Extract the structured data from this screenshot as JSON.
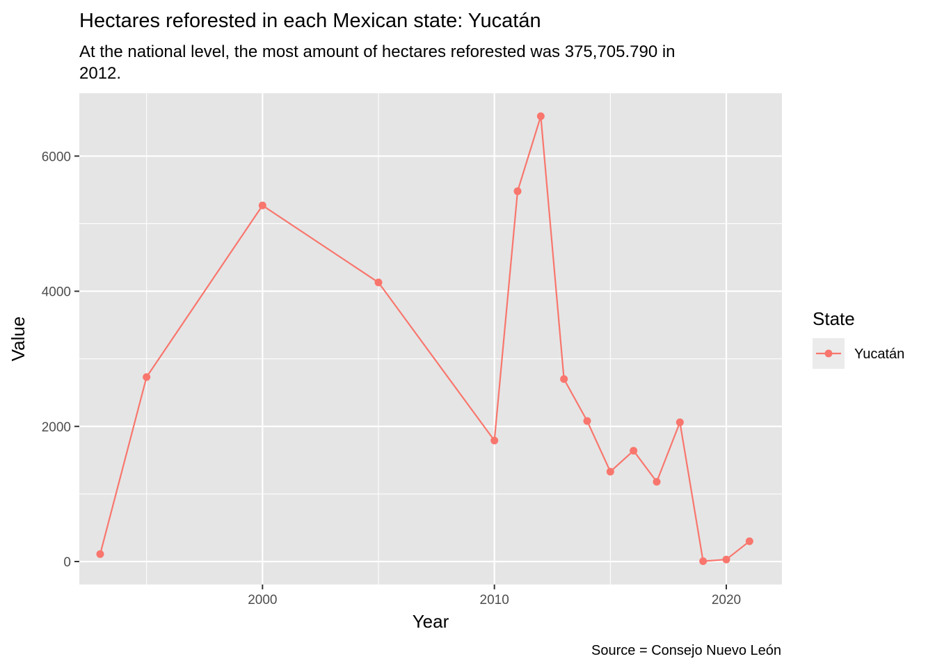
{
  "chart_data": {
    "type": "line",
    "title": "Hectares reforested in each Mexican state: Yucatán",
    "subtitle": [
      "At the national level, the most amount of hectares reforested was 375,705.790 in",
      "2012."
    ],
    "xlabel": "Year",
    "ylabel": "Value",
    "caption": "Source = Consejo Nuevo León",
    "xlim": [
      1992.1,
      2022.4
    ],
    "ylim": [
      -340,
      6930
    ],
    "x_ticks": [
      2000,
      2010,
      2020
    ],
    "x_minor_ticks": [
      1995,
      2005,
      2015
    ],
    "y_ticks": [
      0,
      2000,
      4000,
      6000
    ],
    "y_minor_ticks": [
      1000,
      3000,
      5000
    ],
    "grid": true,
    "legend": {
      "title": "State",
      "position": "right"
    },
    "colors": {
      "panel_background": "#e5e5e5",
      "grid": "#ffffff",
      "legend_key_background": "#ebebeb"
    },
    "series": [
      {
        "name": "Yucatán",
        "color": "#f8766d",
        "x": [
          1993,
          1995,
          2000,
          2005,
          2010,
          2011,
          2012,
          2013,
          2014,
          2015,
          2016,
          2017,
          2018,
          2019,
          2020,
          2021
        ],
        "values": [
          110,
          2730,
          5270,
          4130,
          1790,
          5480,
          6590,
          2700,
          2080,
          1330,
          1640,
          1180,
          2060,
          5,
          30,
          300
        ]
      }
    ]
  }
}
